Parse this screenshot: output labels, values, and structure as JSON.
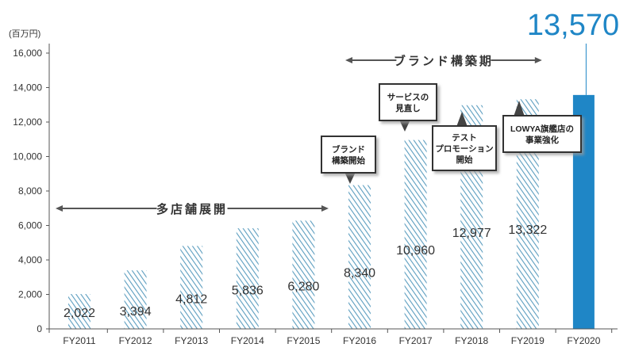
{
  "chart_data": {
    "type": "bar",
    "unit_label": "(百万円)",
    "categories": [
      "FY2011",
      "FY2012",
      "FY2013",
      "FY2014",
      "FY2015",
      "FY2016",
      "FY2017",
      "FY2018",
      "FY2019",
      "FY2020"
    ],
    "values": [
      2022,
      3394,
      4812,
      5836,
      6280,
      8340,
      10960,
      12977,
      13322,
      13570
    ],
    "value_labels": [
      "2,022",
      "3,394",
      "4,812",
      "5,836",
      "6,280",
      "8,340",
      "10,960",
      "12,977",
      "13,322",
      "13,570"
    ],
    "yticks": [
      "0",
      "2,000",
      "4,000",
      "6,000",
      "8,000",
      "10,000",
      "12,000",
      "14,000",
      "16,000"
    ],
    "ylim": [
      0,
      16000
    ],
    "grid": false,
    "colors": {
      "hatched_bar": "#5b9dbf",
      "highlight_bar": "#1f86c6",
      "highlight_label": "#1f86c6",
      "axis": "#555555",
      "text": "#333333",
      "callout_border": "#333333",
      "callout_shadow": "#cccccc"
    },
    "ranges": [
      {
        "label": "多店舗展開",
        "from": "FY2011",
        "to": "FY2015"
      },
      {
        "label": "ブランド構築期",
        "from": "FY2016",
        "to": "FY2019"
      }
    ],
    "callouts": [
      {
        "category": "FY2016",
        "lines": [
          "ブランド",
          "構築開始"
        ]
      },
      {
        "category": "FY2017",
        "lines": [
          "サービスの",
          "見直し"
        ]
      },
      {
        "category": "FY2018",
        "lines": [
          "テスト",
          "プロモーション",
          "開始"
        ]
      },
      {
        "category": "FY2019",
        "lines": [
          "LOWYA旗艦店の",
          "事業強化"
        ]
      }
    ]
  }
}
